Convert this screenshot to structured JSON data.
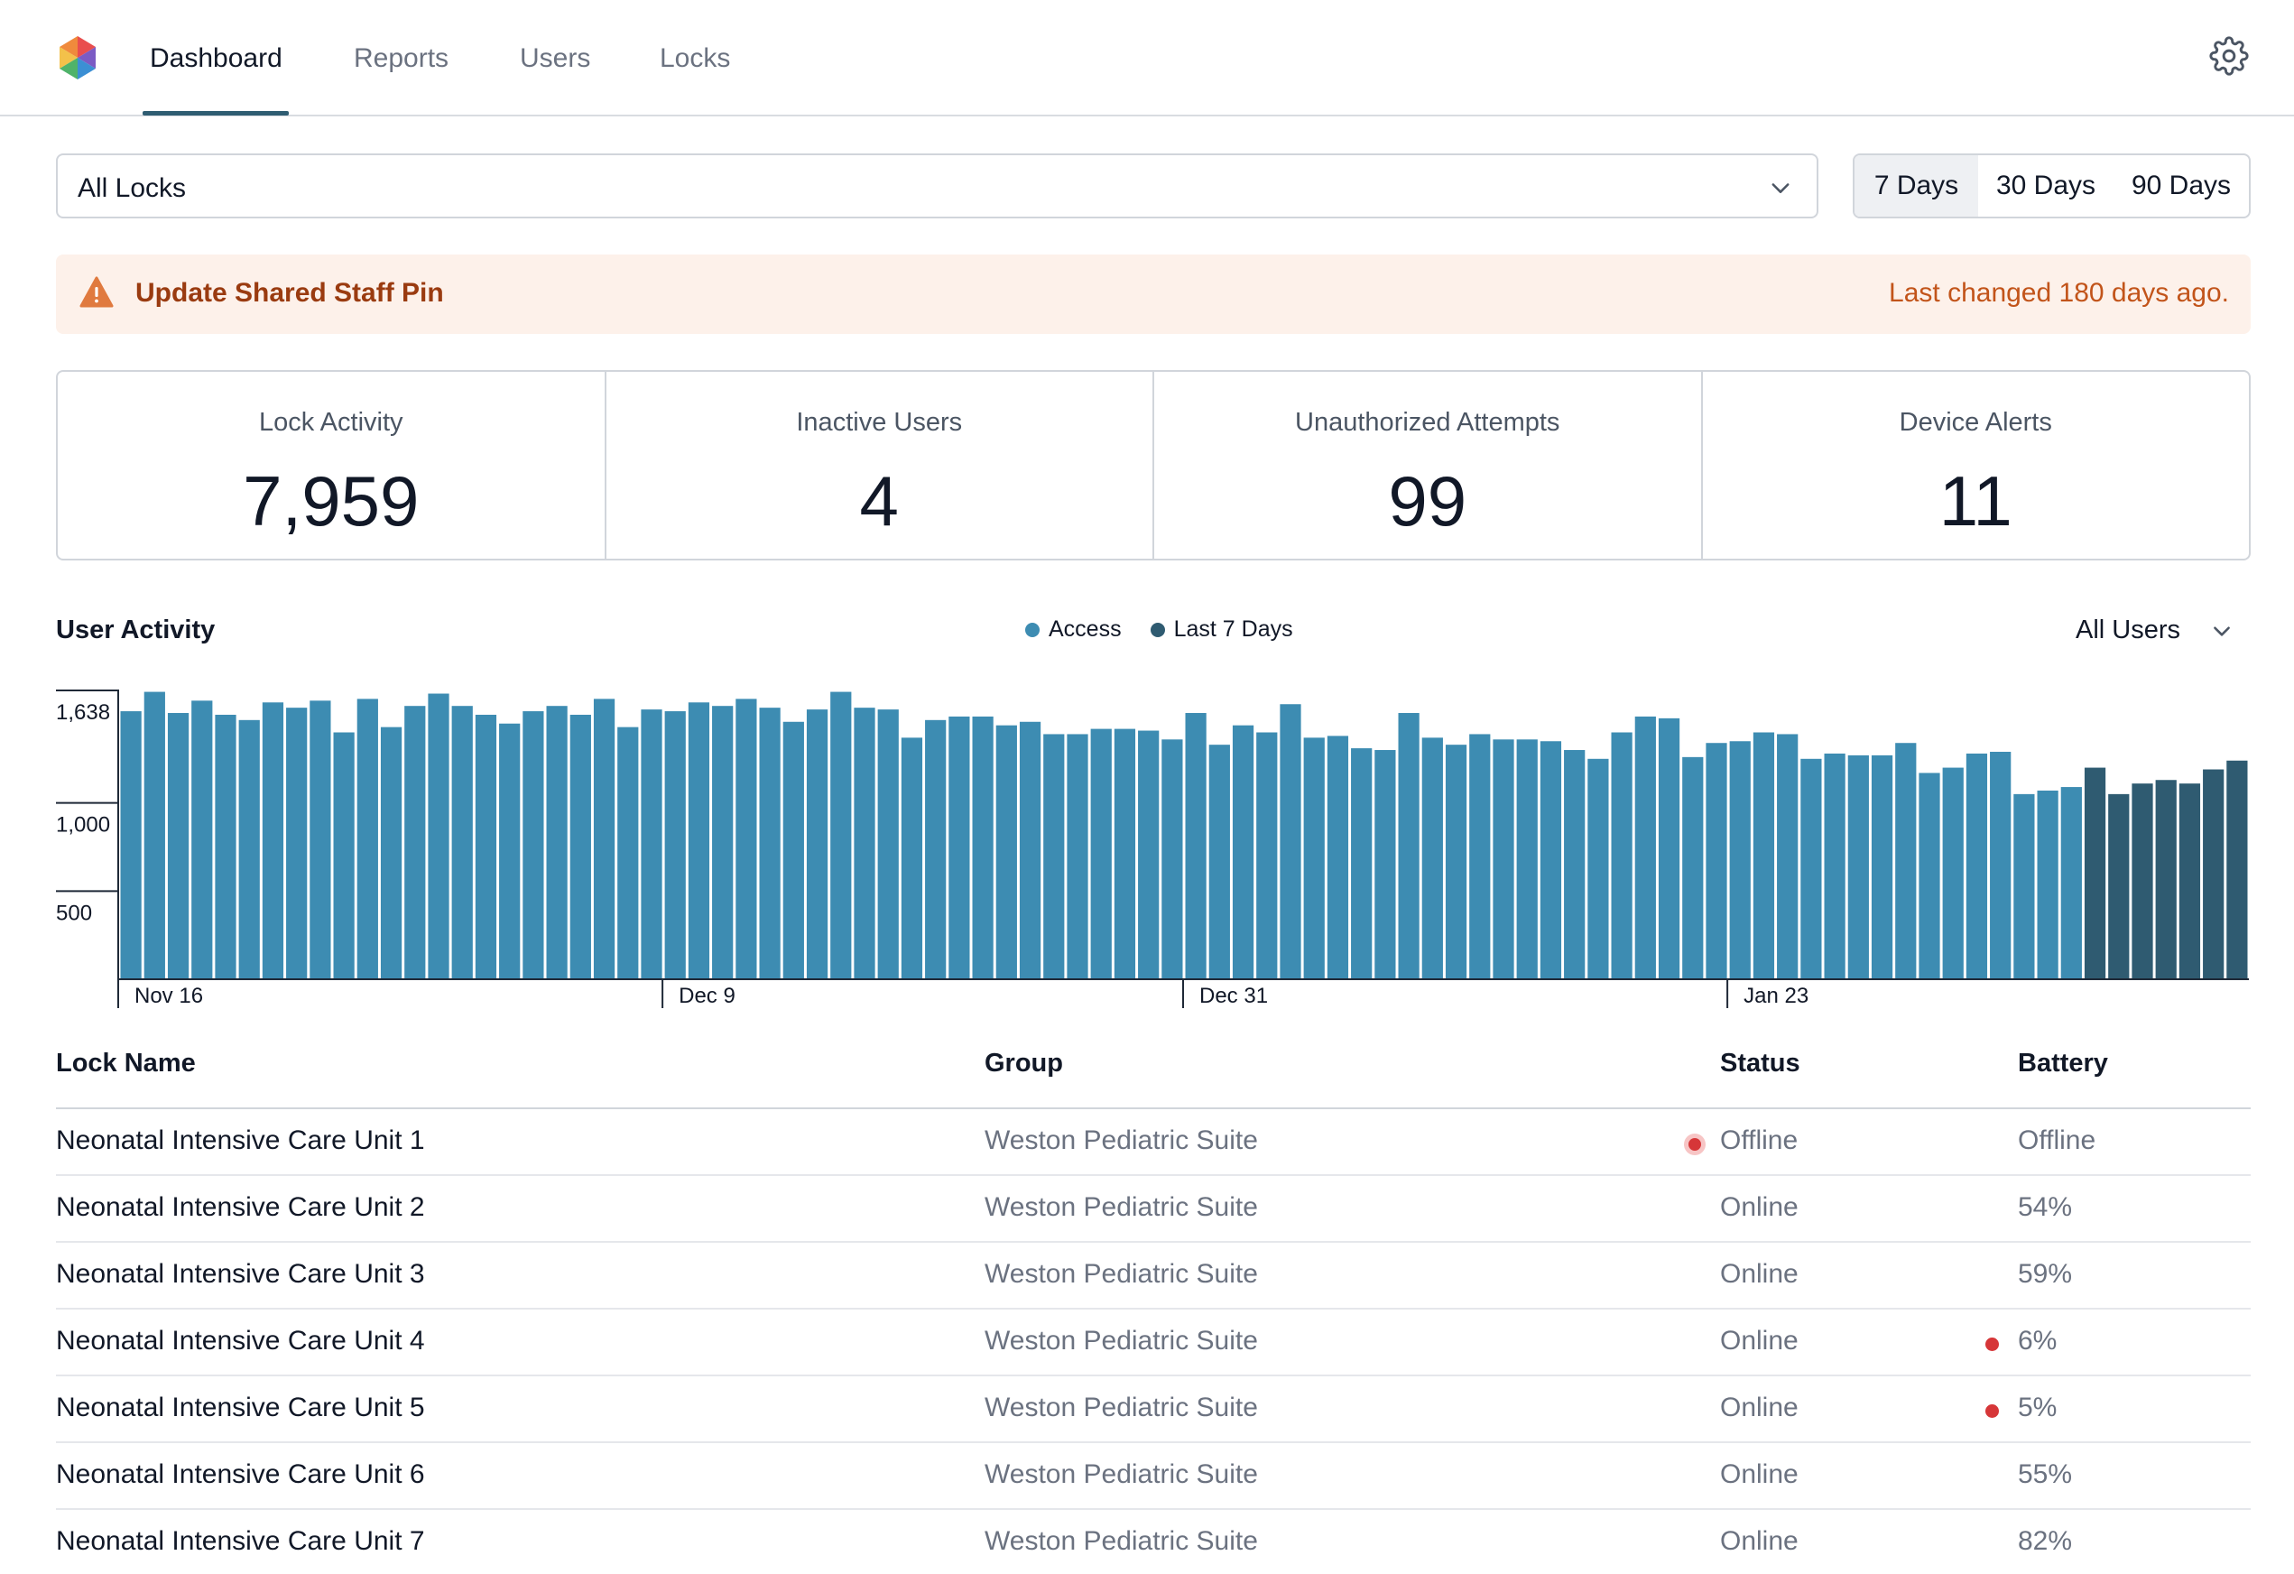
{
  "nav": {
    "tabs": [
      {
        "label": "Dashboard",
        "active": true
      },
      {
        "label": "Reports",
        "active": false
      },
      {
        "label": "Users",
        "active": false
      },
      {
        "label": "Locks",
        "active": false
      }
    ],
    "settings_icon": "gear-icon",
    "logo_icon": "hexagon-logo"
  },
  "filters": {
    "lock_select": "All Locks",
    "ranges": [
      {
        "label": "7 Days",
        "active": true
      },
      {
        "label": "30 Days",
        "active": false
      },
      {
        "label": "90 Days",
        "active": false
      }
    ]
  },
  "alert": {
    "icon": "warning-icon",
    "title": "Update Shared Staff Pin",
    "note": "Last changed 180 days ago.",
    "color": "#c2541a"
  },
  "stats": [
    {
      "label": "Lock Activity",
      "value": "7,959"
    },
    {
      "label": "Inactive Users",
      "value": "4"
    },
    {
      "label": "Unauthorized Attempts",
      "value": "99"
    },
    {
      "label": "Device Alerts",
      "value": "11"
    }
  ],
  "activity": {
    "title": "User Activity",
    "legend": [
      {
        "label": "Access",
        "color": "#3d8cb2"
      },
      {
        "label": "Last 7 Days",
        "color": "#2f5b71"
      }
    ],
    "user_select": "All Users"
  },
  "chart_data": {
    "type": "bar",
    "ylim": [
      0,
      1638
    ],
    "yticks": [
      "1,638",
      "1,000",
      "500"
    ],
    "ytick_values": [
      1638,
      1000,
      500
    ],
    "xticks": [
      {
        "label": "Nov 16",
        "index": 0
      },
      {
        "label": "Dec 9",
        "index": 23
      },
      {
        "label": "Dec 31",
        "index": 45
      },
      {
        "label": "Jan 23",
        "index": 68
      }
    ],
    "series": [
      {
        "name": "Access",
        "color": "#3d8cb2",
        "values": [
          1520,
          1630,
          1510,
          1580,
          1500,
          1470,
          1570,
          1540,
          1580,
          1400,
          1590,
          1430,
          1550,
          1620,
          1550,
          1500,
          1450,
          1520,
          1550,
          1500,
          1590,
          1430,
          1530,
          1520,
          1570,
          1550,
          1590,
          1540,
          1460,
          1530,
          1630,
          1540,
          1530,
          1370,
          1470,
          1490,
          1490,
          1440,
          1460,
          1390,
          1390,
          1420,
          1420,
          1410,
          1360,
          1510,
          1330,
          1440,
          1400,
          1560,
          1370,
          1380,
          1310,
          1300,
          1510,
          1370,
          1330,
          1390,
          1360,
          1360,
          1350,
          1300,
          1250,
          1400,
          1490,
          1480,
          1260,
          1340,
          1350,
          1400,
          1390,
          1250,
          1280,
          1270,
          1270,
          1340,
          1170,
          1200,
          1280,
          1290,
          1050,
          1070,
          1090
        ]
      },
      {
        "name": "Last 7 Days",
        "color": "#2f5b71",
        "values": [
          1200,
          1050,
          1110,
          1130,
          1110,
          1190,
          1240
        ]
      }
    ]
  },
  "table": {
    "headers": {
      "name": "Lock Name",
      "group": "Group",
      "status": "Status",
      "battery": "Battery"
    },
    "rows": [
      {
        "name": "Neonatal Intensive Care Unit 1",
        "group": "Weston Pediatric Suite",
        "status": "Offline",
        "battery": "Offline",
        "status_alert": true,
        "battery_alert": false
      },
      {
        "name": "Neonatal Intensive Care Unit 2",
        "group": "Weston Pediatric Suite",
        "status": "Online",
        "battery": "54%",
        "status_alert": false,
        "battery_alert": false
      },
      {
        "name": "Neonatal Intensive Care Unit 3",
        "group": "Weston Pediatric Suite",
        "status": "Online",
        "battery": "59%",
        "status_alert": false,
        "battery_alert": false
      },
      {
        "name": "Neonatal Intensive Care Unit 4",
        "group": "Weston Pediatric Suite",
        "status": "Online",
        "battery": "6%",
        "status_alert": false,
        "battery_alert": true
      },
      {
        "name": "Neonatal Intensive Care Unit 5",
        "group": "Weston Pediatric Suite",
        "status": "Online",
        "battery": "5%",
        "status_alert": false,
        "battery_alert": true
      },
      {
        "name": "Neonatal Intensive Care Unit 6",
        "group": "Weston Pediatric Suite",
        "status": "Online",
        "battery": "55%",
        "status_alert": false,
        "battery_alert": false
      },
      {
        "name": "Neonatal Intensive Care Unit 7",
        "group": "Weston Pediatric Suite",
        "status": "Online",
        "battery": "82%",
        "status_alert": false,
        "battery_alert": false
      }
    ]
  }
}
